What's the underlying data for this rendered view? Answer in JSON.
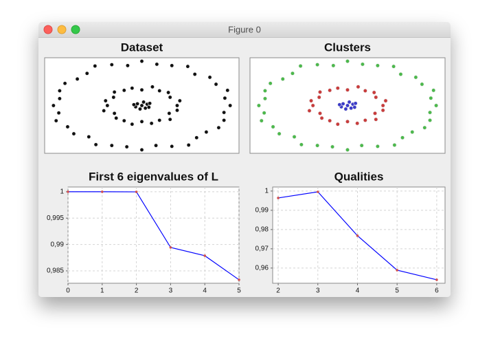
{
  "window": {
    "title": "Figure 0"
  },
  "chart_data": [
    {
      "type": "scatter",
      "title": "Dataset",
      "xlim": [
        -1.1,
        1.1
      ],
      "ylim": [
        -1.1,
        1.1
      ],
      "series": [
        {
          "color": "#111111",
          "x": [
            1.0,
            0.94,
            0.97,
            0.84,
            0.77,
            0.6,
            0.52,
            0.34,
            0.17,
            0.0,
            -0.16,
            -0.34,
            -0.53,
            -0.62,
            -0.73,
            -0.87,
            -0.93,
            -0.93,
            -1.0,
            -0.94,
            -0.97,
            -0.84,
            -0.77,
            -0.6,
            -0.52,
            -0.34,
            -0.17,
            0.0,
            0.16,
            0.34,
            0.53,
            0.62,
            0.73,
            0.87,
            0.93,
            0.93
          ],
          "values": [
            0.0,
            0.17,
            0.35,
            0.49,
            0.65,
            0.72,
            0.9,
            0.92,
            0.95,
            1.02,
            0.92,
            0.94,
            0.91,
            0.74,
            0.61,
            0.51,
            0.34,
            0.16,
            0.0,
            -0.17,
            -0.35,
            -0.49,
            -0.65,
            -0.72,
            -0.9,
            -0.92,
            -0.95,
            -1.02,
            -0.92,
            -0.94,
            -0.91,
            -0.74,
            -0.61,
            -0.51,
            -0.34,
            -0.16
          ]
        },
        {
          "color": "#111111",
          "x": [
            0.4,
            0.43,
            0.32,
            0.3,
            0.2,
            0.12,
            0.0,
            -0.11,
            -0.2,
            -0.31,
            -0.32,
            -0.41,
            -0.39,
            -0.43,
            -0.31,
            -0.29,
            -0.2,
            -0.11,
            0.0,
            0.11,
            0.2,
            0.32,
            0.31,
            0.4
          ],
          "values": [
            0.0,
            0.11,
            0.19,
            0.3,
            0.34,
            0.43,
            0.36,
            0.4,
            0.35,
            0.31,
            0.19,
            0.11,
            0.0,
            -0.12,
            -0.18,
            -0.29,
            -0.35,
            -0.43,
            -0.37,
            -0.41,
            -0.34,
            -0.32,
            -0.18,
            -0.11
          ]
        },
        {
          "color": "#111111",
          "x": [
            0.0,
            0.06,
            -0.05,
            0.08,
            -0.07,
            0.02,
            -0.02,
            0.09,
            -0.09,
            0.04
          ],
          "values": [
            0.0,
            0.03,
            0.04,
            -0.04,
            -0.03,
            0.08,
            -0.08,
            0.05,
            0.02,
            -0.06
          ]
        }
      ]
    },
    {
      "type": "scatter",
      "title": "Clusters",
      "xlim": [
        -1.1,
        1.1
      ],
      "ylim": [
        -1.1,
        1.1
      ],
      "series": [
        {
          "color": "#4cb84c",
          "x": [
            1.0,
            0.94,
            0.97,
            0.84,
            0.77,
            0.6,
            0.52,
            0.34,
            0.17,
            0.0,
            -0.16,
            -0.34,
            -0.53,
            -0.62,
            -0.73,
            -0.87,
            -0.93,
            -0.93,
            -1.0,
            -0.94,
            -0.97,
            -0.84,
            -0.77,
            -0.6,
            -0.52,
            -0.34,
            -0.17,
            0.0,
            0.16,
            0.34,
            0.53,
            0.62,
            0.73,
            0.87,
            0.93,
            0.93
          ],
          "values": [
            0.0,
            0.17,
            0.35,
            0.49,
            0.65,
            0.72,
            0.9,
            0.92,
            0.95,
            1.02,
            0.92,
            0.94,
            0.91,
            0.74,
            0.61,
            0.51,
            0.34,
            0.16,
            0.0,
            -0.17,
            -0.35,
            -0.49,
            -0.65,
            -0.72,
            -0.9,
            -0.92,
            -0.95,
            -1.02,
            -0.92,
            -0.94,
            -0.91,
            -0.74,
            -0.61,
            -0.51,
            -0.34,
            -0.16
          ]
        },
        {
          "color": "#c83c3c",
          "x": [
            0.4,
            0.43,
            0.32,
            0.3,
            0.2,
            0.12,
            0.0,
            -0.11,
            -0.2,
            -0.31,
            -0.32,
            -0.41,
            -0.39,
            -0.43,
            -0.31,
            -0.29,
            -0.2,
            -0.11,
            0.0,
            0.11,
            0.2,
            0.32,
            0.31,
            0.4
          ],
          "values": [
            0.0,
            0.11,
            0.19,
            0.3,
            0.34,
            0.43,
            0.36,
            0.4,
            0.35,
            0.31,
            0.19,
            0.11,
            0.0,
            -0.12,
            -0.18,
            -0.29,
            -0.35,
            -0.43,
            -0.37,
            -0.41,
            -0.34,
            -0.32,
            -0.18,
            -0.11
          ]
        },
        {
          "color": "#3a3ac8",
          "x": [
            0.0,
            0.06,
            -0.05,
            0.08,
            -0.07,
            0.02,
            -0.02,
            0.09,
            -0.09,
            0.04
          ],
          "values": [
            0.0,
            0.03,
            0.04,
            -0.04,
            -0.03,
            0.08,
            -0.08,
            0.05,
            0.02,
            -0.06
          ]
        }
      ]
    },
    {
      "type": "line",
      "title": "First 6 eigenvalues of L",
      "grid": true,
      "x": [
        0,
        1,
        2,
        3,
        4,
        5
      ],
      "xlim": [
        0,
        5
      ],
      "xticks": [
        0,
        1,
        2,
        3,
        4,
        5
      ],
      "ylim": [
        0.98265,
        1.0009
      ],
      "yticks": [
        {
          "value": 0.985,
          "label": "0,985"
        },
        {
          "value": 0.99,
          "label": "0,99"
        },
        {
          "value": 0.995,
          "label": "0,995"
        },
        1
      ],
      "series": [
        {
          "color": "#0000ff",
          "marker_color": "#d05050",
          "values": [
            1,
            1,
            0.99998,
            0.98944,
            0.98787,
            0.98331
          ]
        }
      ]
    },
    {
      "type": "line",
      "title": "Qualities",
      "grid": true,
      "x": [
        2,
        3,
        4,
        5,
        6
      ],
      "xlim": [
        1.86,
        6.21
      ],
      "xticks": [
        2,
        3,
        4,
        5,
        6
      ],
      "ylim": [
        0.9521,
        1.0021
      ],
      "yticks": [
        {
          "value": 0.96,
          "label": "0,96"
        },
        {
          "value": 0.97,
          "label": "0,97"
        },
        {
          "value": 0.98,
          "label": "0,98"
        },
        {
          "value": 0.99,
          "label": "0,99"
        },
        1
      ],
      "series": [
        {
          "color": "#0000ff",
          "marker_color": "#d05050",
          "values": [
            0.9964,
            0.9996,
            0.9768,
            0.9589,
            0.9539
          ]
        }
      ]
    }
  ]
}
